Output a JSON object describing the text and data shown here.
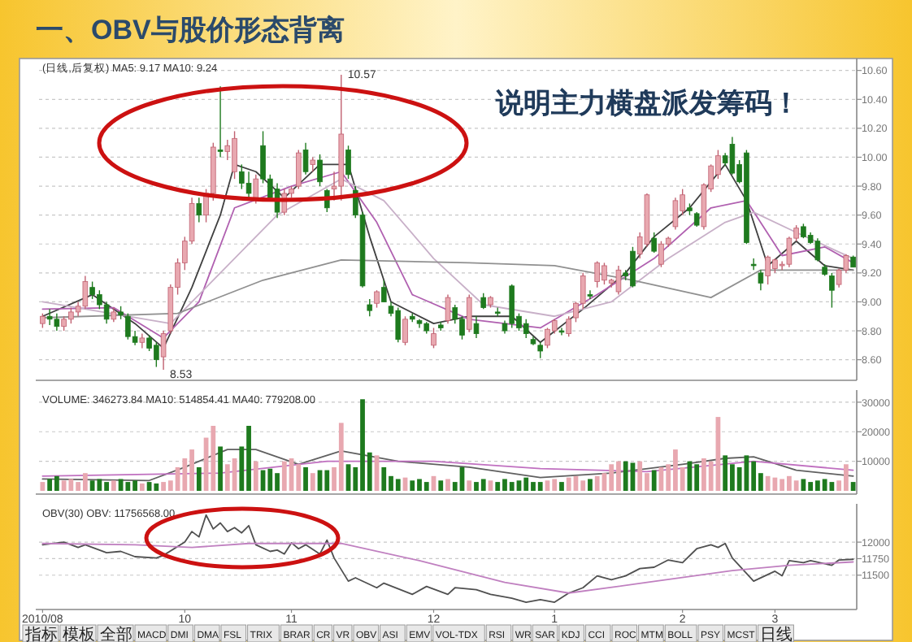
{
  "chart_data": [
    {
      "type": "candlestick",
      "title": "一、OBV与股价形态背离",
      "annotations": [
        "(日线,后复权) MA5: 9.17 MA10: 9.24",
        "说明主力横盘派发筹码！",
        "10.57",
        "8.53"
      ],
      "categories": [
        null,
        null,
        null,
        null,
        null,
        null,
        null,
        null,
        null,
        null,
        null,
        null,
        null,
        null,
        null,
        null,
        null,
        null,
        null,
        null,
        null,
        null,
        null,
        null,
        null,
        null,
        null,
        null,
        null,
        null,
        null,
        null,
        null,
        null,
        null,
        null,
        null,
        null,
        null,
        null,
        null,
        null,
        null,
        null,
        null,
        null,
        null,
        null,
        null,
        null,
        null,
        null,
        null,
        null,
        null,
        null,
        null,
        null,
        null,
        null,
        null,
        null,
        null,
        null,
        null,
        null,
        null,
        null,
        null,
        null,
        null,
        null,
        null,
        null,
        null,
        null,
        null,
        null,
        null,
        null,
        null,
        null,
        null,
        null,
        null,
        null,
        null,
        null,
        null,
        null,
        null,
        null,
        null,
        null,
        null,
        null,
        null,
        null,
        null,
        null,
        null,
        null,
        null,
        null,
        null,
        null,
        null,
        null,
        null,
        null,
        null,
        null,
        null,
        null,
        null
      ],
      "ohlc": [
        [
          8.85,
          8.92,
          8.82,
          8.9
        ],
        [
          8.9,
          8.95,
          8.84,
          8.88
        ],
        [
          8.88,
          8.92,
          8.8,
          8.83
        ],
        [
          8.83,
          8.9,
          8.8,
          8.88
        ],
        [
          8.88,
          8.96,
          8.85,
          8.93
        ],
        [
          8.93,
          9.0,
          8.9,
          8.97
        ],
        [
          8.97,
          9.18,
          8.95,
          9.14
        ],
        [
          9.1,
          9.14,
          9.02,
          9.05
        ],
        [
          9.05,
          9.08,
          8.95,
          8.98
        ],
        [
          8.98,
          9.0,
          8.85,
          8.88
        ],
        [
          8.88,
          8.96,
          8.86,
          8.93
        ],
        [
          8.93,
          8.97,
          8.88,
          8.91
        ],
        [
          8.9,
          8.92,
          8.74,
          8.76
        ],
        [
          8.76,
          8.8,
          8.7,
          8.72
        ],
        [
          8.72,
          8.78,
          8.68,
          8.75
        ],
        [
          8.75,
          8.77,
          8.66,
          8.68
        ],
        [
          8.7,
          8.72,
          8.55,
          8.6
        ],
        [
          8.62,
          8.8,
          8.53,
          8.78
        ],
        [
          8.8,
          9.12,
          8.78,
          9.1
        ],
        [
          9.1,
          9.3,
          9.05,
          9.27
        ],
        [
          9.27,
          9.45,
          9.22,
          9.42
        ],
        [
          9.42,
          9.72,
          9.4,
          9.68
        ],
        [
          9.68,
          9.72,
          9.55,
          9.6
        ],
        [
          9.6,
          9.78,
          9.55,
          9.75
        ],
        [
          9.75,
          10.1,
          9.7,
          10.07
        ],
        [
          10.05,
          10.49,
          10.0,
          10.04
        ],
        [
          10.04,
          10.12,
          9.98,
          10.08
        ],
        [
          9.9,
          10.18,
          9.85,
          10.13
        ],
        [
          9.9,
          9.95,
          9.78,
          9.82
        ],
        [
          9.82,
          9.9,
          9.7,
          9.75
        ],
        [
          9.72,
          9.88,
          9.68,
          9.85
        ],
        [
          10.08,
          10.18,
          9.82,
          9.85
        ],
        [
          9.85,
          9.88,
          9.7,
          9.72
        ],
        [
          9.78,
          9.82,
          9.58,
          9.62
        ],
        [
          9.62,
          9.78,
          9.6,
          9.75
        ],
        [
          9.75,
          9.8,
          9.72,
          9.78
        ],
        [
          9.8,
          10.05,
          9.78,
          10.03
        ],
        [
          10.05,
          10.1,
          9.88,
          9.9
        ],
        [
          9.95,
          10.0,
          9.9,
          9.98
        ],
        [
          9.98,
          10.02,
          9.8,
          9.83
        ],
        [
          9.77,
          9.78,
          9.62,
          9.65
        ],
        [
          9.78,
          9.9,
          9.7,
          9.8
        ],
        [
          9.8,
          10.57,
          9.7,
          10.16
        ],
        [
          10.05,
          10.08,
          9.85,
          9.88
        ],
        [
          9.77,
          9.8,
          9.58,
          9.6
        ],
        [
          9.6,
          9.62,
          9.1,
          9.11
        ],
        [
          8.98,
          9.02,
          8.9,
          8.94
        ],
        [
          8.99,
          9.08,
          8.96,
          9.07
        ],
        [
          9.1,
          9.15,
          9.0,
          9.0
        ],
        [
          8.97,
          9.0,
          8.9,
          8.92
        ],
        [
          8.94,
          8.96,
          8.72,
          8.74
        ],
        [
          8.72,
          8.9,
          8.7,
          8.88
        ],
        [
          8.9,
          8.92,
          8.86,
          8.88
        ],
        [
          8.87,
          8.88,
          8.82,
          8.85
        ],
        [
          8.85,
          8.86,
          8.78,
          8.8
        ],
        [
          8.7,
          8.82,
          8.68,
          8.78
        ],
        [
          8.84,
          8.86,
          8.8,
          8.82
        ],
        [
          8.87,
          9.05,
          8.85,
          9.03
        ],
        [
          8.96,
          8.98,
          8.85,
          8.88
        ],
        [
          8.88,
          8.9,
          8.74,
          8.77
        ],
        [
          8.81,
          9.05,
          8.79,
          9.03
        ],
        [
          8.85,
          8.9,
          8.75,
          8.78
        ],
        [
          9.03,
          9.06,
          8.95,
          8.96
        ],
        [
          8.98,
          9.04,
          8.96,
          9.03
        ],
        [
          8.93,
          8.96,
          8.9,
          8.92
        ],
        [
          8.85,
          8.87,
          8.78,
          8.8
        ],
        [
          9.11,
          9.12,
          8.82,
          8.85
        ],
        [
          8.9,
          8.92,
          8.8,
          8.82
        ],
        [
          8.85,
          8.88,
          8.75,
          8.78
        ],
        [
          8.74,
          8.76,
          8.7,
          8.71
        ],
        [
          8.7,
          8.72,
          8.61,
          8.66
        ],
        [
          8.7,
          8.82,
          8.68,
          8.81
        ],
        [
          8.8,
          8.88,
          8.78,
          8.87
        ],
        [
          8.8,
          8.82,
          8.77,
          8.79
        ],
        [
          8.78,
          8.9,
          8.76,
          8.88
        ],
        [
          8.89,
          9.0,
          8.86,
          8.99
        ],
        [
          8.99,
          9.2,
          8.95,
          9.18
        ],
        [
          9.05,
          9.08,
          9.02,
          9.04
        ],
        [
          9.14,
          9.28,
          9.1,
          9.27
        ],
        [
          9.15,
          9.27,
          9.12,
          9.25
        ],
        [
          9.13,
          9.16,
          9.1,
          9.15
        ],
        [
          9.07,
          9.25,
          9.05,
          9.22
        ],
        [
          9.2,
          9.22,
          9.15,
          9.18
        ],
        [
          9.35,
          9.38,
          9.1,
          9.11
        ],
        [
          9.33,
          9.48,
          9.3,
          9.45
        ],
        [
          9.4,
          9.75,
          9.38,
          9.74
        ],
        [
          9.44,
          9.48,
          9.34,
          9.35
        ],
        [
          9.26,
          9.42,
          9.24,
          9.4
        ],
        [
          9.4,
          9.45,
          9.38,
          9.44
        ],
        [
          9.52,
          9.72,
          9.5,
          9.7
        ],
        [
          9.63,
          9.78,
          9.6,
          9.74
        ],
        [
          9.65,
          9.68,
          9.6,
          9.63
        ],
        [
          9.61,
          9.62,
          9.52,
          9.53
        ],
        [
          9.52,
          9.82,
          9.5,
          9.81
        ],
        [
          9.78,
          9.95,
          9.76,
          9.94
        ],
        [
          9.88,
          10.05,
          9.85,
          10.01
        ],
        [
          10.01,
          10.03,
          9.94,
          9.96
        ],
        [
          10.09,
          10.14,
          9.88,
          9.89
        ],
        [
          9.95,
          9.98,
          9.82,
          9.83
        ],
        [
          10.03,
          10.05,
          9.4,
          9.41
        ],
        [
          9.26,
          9.3,
          9.22,
          9.25
        ],
        [
          9.2,
          9.22,
          9.08,
          9.13
        ],
        [
          9.18,
          9.32,
          9.12,
          9.31
        ],
        [
          9.23,
          9.3,
          9.2,
          9.29
        ],
        [
          9.25,
          9.28,
          9.22,
          9.26
        ],
        [
          9.26,
          9.45,
          9.24,
          9.44
        ],
        [
          9.44,
          9.53,
          9.42,
          9.51
        ],
        [
          9.52,
          9.54,
          9.44,
          9.45
        ],
        [
          9.46,
          9.48,
          9.4,
          9.41
        ],
        [
          9.42,
          9.44,
          9.28,
          9.29
        ],
        [
          9.24,
          9.26,
          9.18,
          9.19
        ],
        [
          9.18,
          9.2,
          8.96,
          9.08
        ],
        [
          9.12,
          9.23,
          9.1,
          9.22
        ],
        [
          9.22,
          9.33,
          9.2,
          9.32
        ],
        [
          9.31,
          9.32,
          9.24,
          9.24
        ]
      ],
      "series": [
        {
          "type": "line",
          "color": "#404040",
          "values": [
            8.9,
            null,
            null,
            null,
            null,
            null,
            null,
            9.05,
            null,
            null,
            null,
            null,
            null,
            8.85,
            null,
            null,
            null,
            8.68,
            null,
            null,
            null,
            9.1,
            null,
            null,
            null,
            9.6,
            null,
            9.95,
            null,
            null,
            9.9,
            null,
            null,
            null,
            9.72,
            null,
            null,
            null,
            null,
            9.95,
            null,
            null,
            null,
            9.95,
            null,
            null,
            9.45,
            null,
            null,
            9.0,
            null,
            null,
            null,
            null,
            null,
            8.85,
            null,
            null,
            null,
            null,
            8.9,
            null,
            null,
            null,
            null,
            null,
            8.9,
            null,
            null,
            null,
            8.72,
            null,
            null,
            null,
            null,
            null,
            8.95,
            null,
            null,
            null,
            null,
            null,
            9.2,
            null,
            null,
            null,
            9.45,
            null,
            null,
            null,
            null,
            9.65,
            null,
            null,
            null,
            null,
            9.95,
            null,
            null,
            9.7,
            null,
            null,
            9.25,
            null,
            null,
            null,
            9.42,
            null,
            null,
            null,
            9.25,
            null,
            null,
            null,
            9.22
          ]
        },
        {
          "type": "line",
          "color": "#b060b0",
          "values": [
            8.95,
            null,
            null,
            null,
            null,
            null,
            null,
            null,
            null,
            null,
            8.96,
            null,
            null,
            null,
            null,
            null,
            null,
            8.75,
            null,
            null,
            null,
            null,
            9.0,
            null,
            null,
            null,
            null,
            9.65,
            null,
            null,
            null,
            null,
            null,
            null,
            null,
            9.8,
            null,
            null,
            null,
            null,
            null,
            null,
            9.9,
            null,
            null,
            null,
            null,
            9.55,
            null,
            null,
            null,
            null,
            9.05,
            null,
            null,
            null,
            null,
            null,
            null,
            null,
            8.88,
            null,
            null,
            null,
            null,
            null,
            null,
            null,
            null,
            null,
            8.82,
            null,
            null,
            null,
            null,
            null,
            null,
            null,
            9.05,
            null,
            null,
            null,
            null,
            null,
            null,
            null,
            9.3,
            null,
            null,
            null,
            null,
            null,
            null,
            null,
            9.65,
            null,
            null,
            null,
            null,
            9.7,
            null,
            null,
            null,
            null,
            9.32,
            null,
            null,
            null,
            null,
            null,
            9.38,
            null,
            null,
            null,
            9.27
          ]
        },
        {
          "type": "line",
          "color": "#c8b0c8",
          "values": [
            9.0,
            null,
            null,
            null,
            null,
            null,
            null,
            null,
            null,
            null,
            null,
            null,
            null,
            null,
            null,
            null,
            null,
            null,
            8.85,
            null,
            null,
            null,
            null,
            null,
            null,
            9.2,
            null,
            null,
            null,
            null,
            null,
            null,
            null,
            9.6,
            null,
            null,
            null,
            null,
            null,
            null,
            null,
            null,
            9.85,
            null,
            null,
            null,
            null,
            null,
            9.7,
            null,
            null,
            null,
            null,
            null,
            null,
            9.3,
            null,
            null,
            null,
            null,
            null,
            null,
            8.98,
            null,
            null,
            null,
            null,
            null,
            null,
            null,
            null,
            null,
            8.9,
            null,
            null,
            null,
            null,
            null,
            null,
            null,
            9.0,
            null,
            null,
            null,
            null,
            null,
            null,
            null,
            9.3,
            null,
            null,
            null,
            null,
            null,
            null,
            null,
            9.55,
            null,
            null,
            null,
            9.62,
            null,
            null,
            null,
            null,
            null,
            9.48,
            null,
            null,
            null,
            null,
            null,
            null,
            null,
            9.3
          ]
        },
        {
          "type": "line",
          "color": "#909090",
          "values": [
            8.89,
            null,
            null,
            null,
            null,
            null,
            null,
            null,
            null,
            null,
            null,
            null,
            null,
            null,
            null,
            null,
            null,
            null,
            null,
            8.92,
            null,
            null,
            null,
            null,
            null,
            null,
            null,
            null,
            null,
            null,
            null,
            9.15,
            null,
            null,
            null,
            null,
            null,
            null,
            null,
            null,
            null,
            null,
            9.29,
            null,
            null,
            null,
            null,
            null,
            null,
            null,
            null,
            null,
            null,
            null,
            null,
            null,
            null,
            null,
            null,
            null,
            9.27,
            null,
            null,
            null,
            null,
            null,
            null,
            null,
            null,
            null,
            null,
            null,
            9.25,
            null,
            null,
            null,
            null,
            null,
            null,
            null,
            null,
            null,
            null,
            9.15,
            null,
            null,
            null,
            null,
            null,
            null,
            null,
            null,
            null,
            null,
            9.03,
            null,
            null,
            null,
            null,
            null,
            null,
            9.22,
            null,
            null,
            null,
            null,
            null,
            null,
            null,
            null,
            null,
            null,
            null,
            null,
            9.22
          ]
        }
      ],
      "ylim": [
        8.48,
        10.66
      ],
      "yticks": [
        {
          "value": 8.6,
          "label": "8.60"
        },
        {
          "value": 8.8,
          "label": "8.80"
        },
        {
          "value": 9.0,
          "label": "9.00"
        },
        {
          "value": 9.2,
          "label": "9.20"
        },
        {
          "value": 9.4,
          "label": "9.40"
        },
        {
          "value": 9.6,
          "label": "9.60"
        },
        {
          "value": 9.8,
          "label": "9.80"
        },
        {
          "value": 10.0,
          "label": "10.00"
        },
        {
          "value": 10.2,
          "label": "10.20"
        },
        {
          "value": 10.4,
          "label": "10.40"
        },
        {
          "value": 10.6,
          "label": "10.60"
        }
      ],
      "grid": "y",
      "tick_labels": "y"
    },
    {
      "type": "bar",
      "annotations": [
        "VOLUME: 346273.84 MA10: 514854.41 MA40: 779208.00"
      ],
      "categories": [
        null,
        null,
        null,
        null,
        null,
        null,
        null,
        null,
        null,
        null,
        null,
        null,
        null,
        null,
        null,
        null,
        null,
        null,
        null,
        null,
        null,
        null,
        null,
        null,
        null,
        null,
        null,
        null,
        null,
        null,
        null,
        null,
        null,
        null,
        null,
        null,
        null,
        null,
        null,
        null,
        null,
        null,
        null,
        null,
        null,
        null,
        null,
        null,
        null,
        null,
        null,
        null,
        null,
        null,
        null,
        null,
        null,
        null,
        null,
        null,
        null,
        null,
        null,
        null,
        null,
        null,
        null,
        null,
        null,
        null,
        null,
        null,
        null,
        null,
        null,
        null,
        null,
        null,
        null,
        null,
        null,
        null,
        null,
        null,
        null,
        null,
        null,
        null,
        null,
        null,
        null,
        null,
        null,
        null,
        null,
        null,
        null,
        null,
        null,
        null,
        null,
        null,
        null,
        null,
        null,
        null,
        null,
        null,
        null,
        null,
        null,
        null,
        null,
        null,
        null
      ],
      "values": [
        3000,
        4000,
        5000,
        3500,
        4000,
        3000,
        6000,
        3500,
        4000,
        3000,
        3500,
        4000,
        3000,
        3500,
        2500,
        3000,
        2500,
        3000,
        3500,
        8000,
        11000,
        14000,
        8000,
        18000,
        22000,
        15000,
        9000,
        11000,
        15000,
        22000,
        10000,
        7000,
        7500,
        6000,
        10000,
        11000,
        9000,
        8000,
        6000,
        7000,
        7000,
        8000,
        23000,
        9000,
        8000,
        31000,
        13000,
        12000,
        8000,
        5000,
        4000,
        4500,
        3500,
        4000,
        3000,
        5000,
        3500,
        4000,
        3000,
        8000,
        3500,
        3000,
        4000,
        3500,
        3000,
        4000,
        3000,
        3500,
        4500,
        3000,
        3000,
        3500,
        4000,
        3000,
        4500,
        5000,
        3500,
        4000,
        5000,
        6000,
        9000,
        10000,
        10000,
        9500,
        10000,
        6000,
        7000,
        8000,
        9000,
        14000,
        8000,
        10000,
        9000,
        11000,
        10000,
        25000,
        12000,
        9000,
        8000,
        12000,
        10000,
        6000,
        5000,
        4500,
        4000,
        5000,
        3500,
        4000,
        3000,
        3500,
        4000,
        3000,
        3500,
        9000,
        3000
      ],
      "colors": [
        "#e8a8b0",
        "#1e7a1e",
        "#1e7a1e",
        "#e8a8b0",
        "#e8a8b0",
        "#e8a8b0",
        "#e8a8b0",
        "#1e7a1e",
        "#1e7a1e",
        "#1e7a1e",
        "#e8a8b0",
        "#1e7a1e",
        "#1e7a1e",
        "#1e7a1e",
        "#e8a8b0",
        "#1e7a1e",
        "#1e7a1e",
        "#e8a8b0",
        "#e8a8b0",
        "#e8a8b0",
        "#e8a8b0",
        "#e8a8b0",
        "#1e7a1e",
        "#e8a8b0",
        "#e8a8b0",
        "#1e7a1e",
        "#e8a8b0",
        "#e8a8b0",
        "#1e7a1e",
        "#1e7a1e",
        "#e8a8b0",
        "#1e7a1e",
        "#1e7a1e",
        "#1e7a1e",
        "#e8a8b0",
        "#e8a8b0",
        "#e8a8b0",
        "#1e7a1e",
        "#e8a8b0",
        "#1e7a1e",
        "#1e7a1e",
        "#e8a8b0",
        "#e8a8b0",
        "#1e7a1e",
        "#1e7a1e",
        "#1e7a1e",
        "#1e7a1e",
        "#e8a8b0",
        "#1e7a1e",
        "#1e7a1e",
        "#1e7a1e",
        "#e8a8b0",
        "#1e7a1e",
        "#1e7a1e",
        "#1e7a1e",
        "#e8a8b0",
        "#1e7a1e",
        "#e8a8b0",
        "#1e7a1e",
        "#1e7a1e",
        "#e8a8b0",
        "#1e7a1e",
        "#1e7a1e",
        "#e8a8b0",
        "#1e7a1e",
        "#1e7a1e",
        "#1e7a1e",
        "#1e7a1e",
        "#1e7a1e",
        "#1e7a1e",
        "#1e7a1e",
        "#e8a8b0",
        "#e8a8b0",
        "#1e7a1e",
        "#e8a8b0",
        "#e8a8b0",
        "#e8a8b0",
        "#1e7a1e",
        "#e8a8b0",
        "#e8a8b0",
        "#e8a8b0",
        "#e8a8b0",
        "#1e7a1e",
        "#1e7a1e",
        "#e8a8b0",
        "#e8a8b0",
        "#1e7a1e",
        "#e8a8b0",
        "#e8a8b0",
        "#e8a8b0",
        "#e8a8b0",
        "#1e7a1e",
        "#1e7a1e",
        "#e8a8b0",
        "#e8a8b0",
        "#e8a8b0",
        "#1e7a1e",
        "#1e7a1e",
        "#1e7a1e",
        "#1e7a1e",
        "#1e7a1e",
        "#1e7a1e",
        "#e8a8b0",
        "#e8a8b0",
        "#e8a8b0",
        "#e8a8b0",
        "#e8a8b0",
        "#1e7a1e",
        "#1e7a1e",
        "#1e7a1e",
        "#1e7a1e",
        "#1e7a1e",
        "#e8a8b0",
        "#e8a8b0",
        "#1e7a1e"
      ],
      "series": [
        {
          "type": "line",
          "color": "#606060",
          "values": [
            4000,
            null,
            null,
            null,
            null,
            null,
            null,
            null,
            null,
            null,
            null,
            null,
            null,
            null,
            null,
            3500,
            null,
            null,
            null,
            null,
            8000,
            null,
            null,
            null,
            null,
            null,
            14000,
            null,
            null,
            null,
            14000,
            null,
            null,
            null,
            null,
            null,
            9000,
            null,
            null,
            null,
            null,
            null,
            13500,
            null,
            null,
            null,
            null,
            null,
            null,
            null,
            10000,
            null,
            null,
            null,
            null,
            null,
            null,
            null,
            null,
            null,
            8000,
            null,
            null,
            null,
            null,
            null,
            null,
            null,
            null,
            null,
            4500,
            null,
            null,
            null,
            null,
            null,
            null,
            null,
            null,
            null,
            6000,
            null,
            null,
            null,
            null,
            null,
            null,
            null,
            null,
            null,
            9000,
            null,
            null,
            null,
            null,
            null,
            11000,
            null,
            null,
            null,
            11500,
            null,
            null,
            null,
            null,
            null,
            7000,
            null,
            null,
            null,
            null,
            null,
            null,
            null,
            5000
          ]
        },
        {
          "type": "line",
          "color": "#c070c0",
          "values": [
            5000,
            null,
            null,
            null,
            null,
            null,
            null,
            null,
            null,
            null,
            null,
            null,
            null,
            null,
            null,
            null,
            null,
            null,
            null,
            null,
            null,
            null,
            null,
            null,
            null,
            6000,
            null,
            null,
            null,
            null,
            null,
            null,
            null,
            null,
            null,
            null,
            null,
            null,
            null,
            null,
            10000,
            null,
            null,
            null,
            null,
            null,
            null,
            null,
            null,
            null,
            null,
            null,
            null,
            null,
            null,
            10000,
            null,
            null,
            null,
            null,
            null,
            null,
            null,
            null,
            null,
            null,
            null,
            null,
            null,
            null,
            7500,
            null,
            null,
            null,
            null,
            null,
            null,
            null,
            null,
            null,
            null,
            null,
            null,
            null,
            null,
            6500,
            null,
            null,
            null,
            null,
            null,
            null,
            null,
            null,
            null,
            null,
            null,
            null,
            null,
            null,
            10000,
            null,
            null,
            null,
            null,
            null,
            null,
            null,
            null,
            null,
            null,
            null,
            null,
            null,
            7000
          ]
        }
      ],
      "ylim": [
        0,
        33000
      ],
      "yticks": [
        10000,
        20000,
        30000
      ],
      "grid": "y",
      "tick_labels": "y"
    },
    {
      "type": "line",
      "annotations": [
        "OBV(30) OBV: 11756568.00"
      ],
      "series": [
        {
          "color": "#505050",
          "values": [
            11960,
            null,
            null,
            12000,
            null,
            11920,
            11960,
            null,
            null,
            11840,
            null,
            11860,
            null,
            11780,
            null,
            null,
            11760,
            11800,
            null,
            null,
            12000,
            12160,
            12080,
            12410,
            12200,
            12290,
            12160,
            12220,
            12140,
            12250,
            11960,
            null,
            11860,
            11880,
            11820,
            11990,
            11900,
            11960,
            null,
            11820,
            12030,
            11760,
            null,
            11410,
            11460,
            null,
            null,
            11310,
            11380,
            null,
            null,
            null,
            11210,
            null,
            11330,
            null,
            null,
            11210,
            11310,
            null,
            null,
            11280,
            null,
            11210,
            null,
            null,
            11150,
            null,
            11090,
            null,
            11130,
            null,
            11090,
            null,
            11230,
            null,
            11310,
            null,
            11490,
            null,
            11430,
            null,
            11490,
            null,
            11600,
            null,
            11620,
            null,
            11730,
            null,
            11690,
            null,
            11900,
            null,
            11960,
            11920,
            11980,
            11760,
            null,
            null,
            11410,
            null,
            null,
            11560,
            11490,
            11720,
            null,
            11690,
            11720,
            null,
            null,
            11650,
            11730,
            null,
            11740
          ]
        },
        {
          "color": "#c080c0",
          "values": [
            11980,
            null,
            null,
            null,
            null,
            null,
            null,
            null,
            null,
            null,
            null,
            null,
            null,
            11960,
            null,
            null,
            null,
            null,
            null,
            null,
            null,
            11920,
            null,
            null,
            null,
            null,
            null,
            null,
            null,
            11980,
            null,
            null,
            null,
            null,
            null,
            null,
            null,
            null,
            null,
            null,
            null,
            null,
            11980,
            null,
            null,
            null,
            null,
            null,
            null,
            null,
            null,
            null,
            null,
            11720,
            null,
            null,
            null,
            null,
            null,
            null,
            null,
            null,
            null,
            null,
            null,
            11390,
            null,
            null,
            null,
            null,
            null,
            null,
            null,
            null,
            11230,
            null,
            null,
            null,
            null,
            null,
            null,
            null,
            null,
            null,
            null,
            11390,
            null,
            null,
            null,
            null,
            null,
            null,
            null,
            null,
            null,
            null,
            null,
            11570,
            null,
            null,
            null,
            null,
            null,
            null,
            null,
            11650,
            null,
            null,
            null,
            null,
            null,
            null,
            null,
            null,
            11700
          ]
        }
      ],
      "categories": [
        "2010/08",
        null,
        null,
        null,
        null,
        null,
        null,
        null,
        null,
        null,
        null,
        null,
        null,
        null,
        null,
        null,
        null,
        null,
        null,
        null,
        "10",
        null,
        null,
        null,
        null,
        null,
        null,
        null,
        null,
        null,
        null,
        null,
        null,
        null,
        null,
        "11",
        null,
        null,
        null,
        null,
        null,
        null,
        null,
        null,
        null,
        null,
        null,
        null,
        null,
        null,
        null,
        null,
        null,
        null,
        null,
        "12",
        null,
        null,
        null,
        null,
        null,
        null,
        null,
        null,
        null,
        null,
        null,
        null,
        null,
        null,
        null,
        null,
        "1",
        null,
        null,
        null,
        null,
        null,
        null,
        null,
        null,
        null,
        null,
        null,
        null,
        null,
        null,
        null,
        null,
        null,
        "2",
        null,
        null,
        null,
        null,
        null,
        null,
        null,
        null,
        null,
        null,
        null,
        null,
        "3",
        null,
        null,
        null,
        null,
        null,
        null,
        null,
        null,
        null,
        null,
        null
      ],
      "ylim": [
        11030,
        12530
      ],
      "yticks": [
        11500,
        11750,
        12000
      ],
      "grid": "y"
    },
    {
      "type": "other",
      "annotations": [
        "指标",
        "模板",
        "全部",
        "MACD",
        "DMI",
        "DMA",
        "FSL",
        "TRIX",
        "BRAR",
        "CR",
        "VR",
        "OBV",
        "ASI",
        "EMV",
        "VOL-TDX",
        "RSI",
        "WR",
        "SAR",
        "KDJ",
        "CCI",
        "ROC",
        "MTM",
        "BOLL",
        "PSY",
        "MCST",
        "日线"
      ]
    }
  ]
}
